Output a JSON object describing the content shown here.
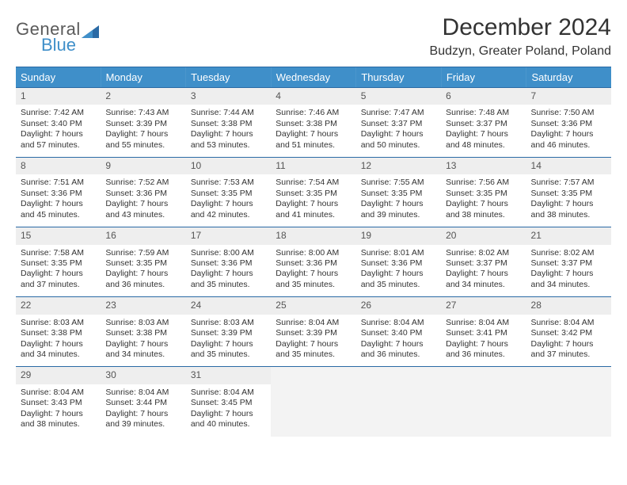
{
  "logo": {
    "word1": "General",
    "word2": "Blue"
  },
  "title": "December 2024",
  "location": "Budzyn, Greater Poland, Poland",
  "calendar": {
    "header_bg": "#3f8fc9",
    "header_fg": "#ffffff",
    "rule_color": "#2a6aa5",
    "daynum_bg": "#eeeeee",
    "empty_bg": "#f3f3f3",
    "body_font_size": 10.5,
    "dow_font_size": 13,
    "title_font_size": 30,
    "loc_font_size": 16,
    "days_of_week": [
      "Sunday",
      "Monday",
      "Tuesday",
      "Wednesday",
      "Thursday",
      "Friday",
      "Saturday"
    ],
    "weeks": [
      [
        {
          "num": "1",
          "sunrise": "7:42 AM",
          "sunset": "3:40 PM",
          "daylight": "7 hours and 57 minutes."
        },
        {
          "num": "2",
          "sunrise": "7:43 AM",
          "sunset": "3:39 PM",
          "daylight": "7 hours and 55 minutes."
        },
        {
          "num": "3",
          "sunrise": "7:44 AM",
          "sunset": "3:38 PM",
          "daylight": "7 hours and 53 minutes."
        },
        {
          "num": "4",
          "sunrise": "7:46 AM",
          "sunset": "3:38 PM",
          "daylight": "7 hours and 51 minutes."
        },
        {
          "num": "5",
          "sunrise": "7:47 AM",
          "sunset": "3:37 PM",
          "daylight": "7 hours and 50 minutes."
        },
        {
          "num": "6",
          "sunrise": "7:48 AM",
          "sunset": "3:37 PM",
          "daylight": "7 hours and 48 minutes."
        },
        {
          "num": "7",
          "sunrise": "7:50 AM",
          "sunset": "3:36 PM",
          "daylight": "7 hours and 46 minutes."
        }
      ],
      [
        {
          "num": "8",
          "sunrise": "7:51 AM",
          "sunset": "3:36 PM",
          "daylight": "7 hours and 45 minutes."
        },
        {
          "num": "9",
          "sunrise": "7:52 AM",
          "sunset": "3:36 PM",
          "daylight": "7 hours and 43 minutes."
        },
        {
          "num": "10",
          "sunrise": "7:53 AM",
          "sunset": "3:35 PM",
          "daylight": "7 hours and 42 minutes."
        },
        {
          "num": "11",
          "sunrise": "7:54 AM",
          "sunset": "3:35 PM",
          "daylight": "7 hours and 41 minutes."
        },
        {
          "num": "12",
          "sunrise": "7:55 AM",
          "sunset": "3:35 PM",
          "daylight": "7 hours and 39 minutes."
        },
        {
          "num": "13",
          "sunrise": "7:56 AM",
          "sunset": "3:35 PM",
          "daylight": "7 hours and 38 minutes."
        },
        {
          "num": "14",
          "sunrise": "7:57 AM",
          "sunset": "3:35 PM",
          "daylight": "7 hours and 38 minutes."
        }
      ],
      [
        {
          "num": "15",
          "sunrise": "7:58 AM",
          "sunset": "3:35 PM",
          "daylight": "7 hours and 37 minutes."
        },
        {
          "num": "16",
          "sunrise": "7:59 AM",
          "sunset": "3:35 PM",
          "daylight": "7 hours and 36 minutes."
        },
        {
          "num": "17",
          "sunrise": "8:00 AM",
          "sunset": "3:36 PM",
          "daylight": "7 hours and 35 minutes."
        },
        {
          "num": "18",
          "sunrise": "8:00 AM",
          "sunset": "3:36 PM",
          "daylight": "7 hours and 35 minutes."
        },
        {
          "num": "19",
          "sunrise": "8:01 AM",
          "sunset": "3:36 PM",
          "daylight": "7 hours and 35 minutes."
        },
        {
          "num": "20",
          "sunrise": "8:02 AM",
          "sunset": "3:37 PM",
          "daylight": "7 hours and 34 minutes."
        },
        {
          "num": "21",
          "sunrise": "8:02 AM",
          "sunset": "3:37 PM",
          "daylight": "7 hours and 34 minutes."
        }
      ],
      [
        {
          "num": "22",
          "sunrise": "8:03 AM",
          "sunset": "3:38 PM",
          "daylight": "7 hours and 34 minutes."
        },
        {
          "num": "23",
          "sunrise": "8:03 AM",
          "sunset": "3:38 PM",
          "daylight": "7 hours and 34 minutes."
        },
        {
          "num": "24",
          "sunrise": "8:03 AM",
          "sunset": "3:39 PM",
          "daylight": "7 hours and 35 minutes."
        },
        {
          "num": "25",
          "sunrise": "8:04 AM",
          "sunset": "3:39 PM",
          "daylight": "7 hours and 35 minutes."
        },
        {
          "num": "26",
          "sunrise": "8:04 AM",
          "sunset": "3:40 PM",
          "daylight": "7 hours and 36 minutes."
        },
        {
          "num": "27",
          "sunrise": "8:04 AM",
          "sunset": "3:41 PM",
          "daylight": "7 hours and 36 minutes."
        },
        {
          "num": "28",
          "sunrise": "8:04 AM",
          "sunset": "3:42 PM",
          "daylight": "7 hours and 37 minutes."
        }
      ],
      [
        {
          "num": "29",
          "sunrise": "8:04 AM",
          "sunset": "3:43 PM",
          "daylight": "7 hours and 38 minutes."
        },
        {
          "num": "30",
          "sunrise": "8:04 AM",
          "sunset": "3:44 PM",
          "daylight": "7 hours and 39 minutes."
        },
        {
          "num": "31",
          "sunrise": "8:04 AM",
          "sunset": "3:45 PM",
          "daylight": "7 hours and 40 minutes."
        },
        null,
        null,
        null,
        null
      ]
    ]
  },
  "labels": {
    "sunrise": "Sunrise:",
    "sunset": "Sunset:",
    "daylight": "Daylight:"
  }
}
